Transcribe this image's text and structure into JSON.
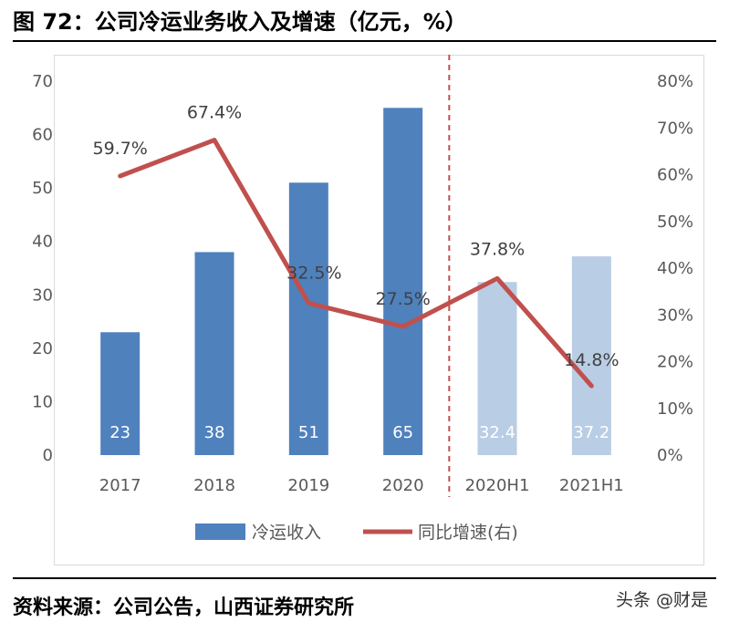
{
  "figure": {
    "title": "图 72：公司冷运业务收入及增速（亿元，%）",
    "source": "资料来源：公司公告，山西证券研究所",
    "watermark": "头条 @财是"
  },
  "chart_data": {
    "type": "bar",
    "categories": [
      "2017",
      "2018",
      "2019",
      "2020",
      "2020H1",
      "2021H1"
    ],
    "series": [
      {
        "name": "冷运收入",
        "type": "bar",
        "axis": "left",
        "values": [
          23,
          38,
          51,
          65,
          32.4,
          37.2
        ],
        "labels": [
          "23",
          "38",
          "51",
          "65",
          "32.4",
          "37.2"
        ],
        "colors": [
          "#4f81bd",
          "#4f81bd",
          "#4f81bd",
          "#4f81bd",
          "#b9cde5",
          "#b9cde5"
        ]
      },
      {
        "name": "同比增速(右)",
        "type": "line",
        "axis": "right",
        "values": [
          59.7,
          67.4,
          32.5,
          27.5,
          37.8,
          14.8
        ],
        "labels": [
          "59.7%",
          "67.4%",
          "32.5%",
          "27.5%",
          "37.8%",
          "14.8%"
        ],
        "color": "#c0504d"
      }
    ],
    "y_left": {
      "ylim": [
        0,
        70
      ],
      "ticks": [
        "0",
        "10",
        "20",
        "30",
        "40",
        "50",
        "60",
        "70"
      ]
    },
    "y_right": {
      "ylim": [
        0,
        80
      ],
      "ticks": [
        "0%",
        "10%",
        "20%",
        "30%",
        "40%",
        "50%",
        "60%",
        "70%",
        "80%"
      ]
    },
    "divider": {
      "between": [
        "2020",
        "2020H1"
      ],
      "style": "dashed",
      "color": "#c0504d"
    },
    "legend": {
      "position": "bottom",
      "items": [
        "冷运收入",
        "同比增速(右)"
      ]
    },
    "grid": false
  }
}
